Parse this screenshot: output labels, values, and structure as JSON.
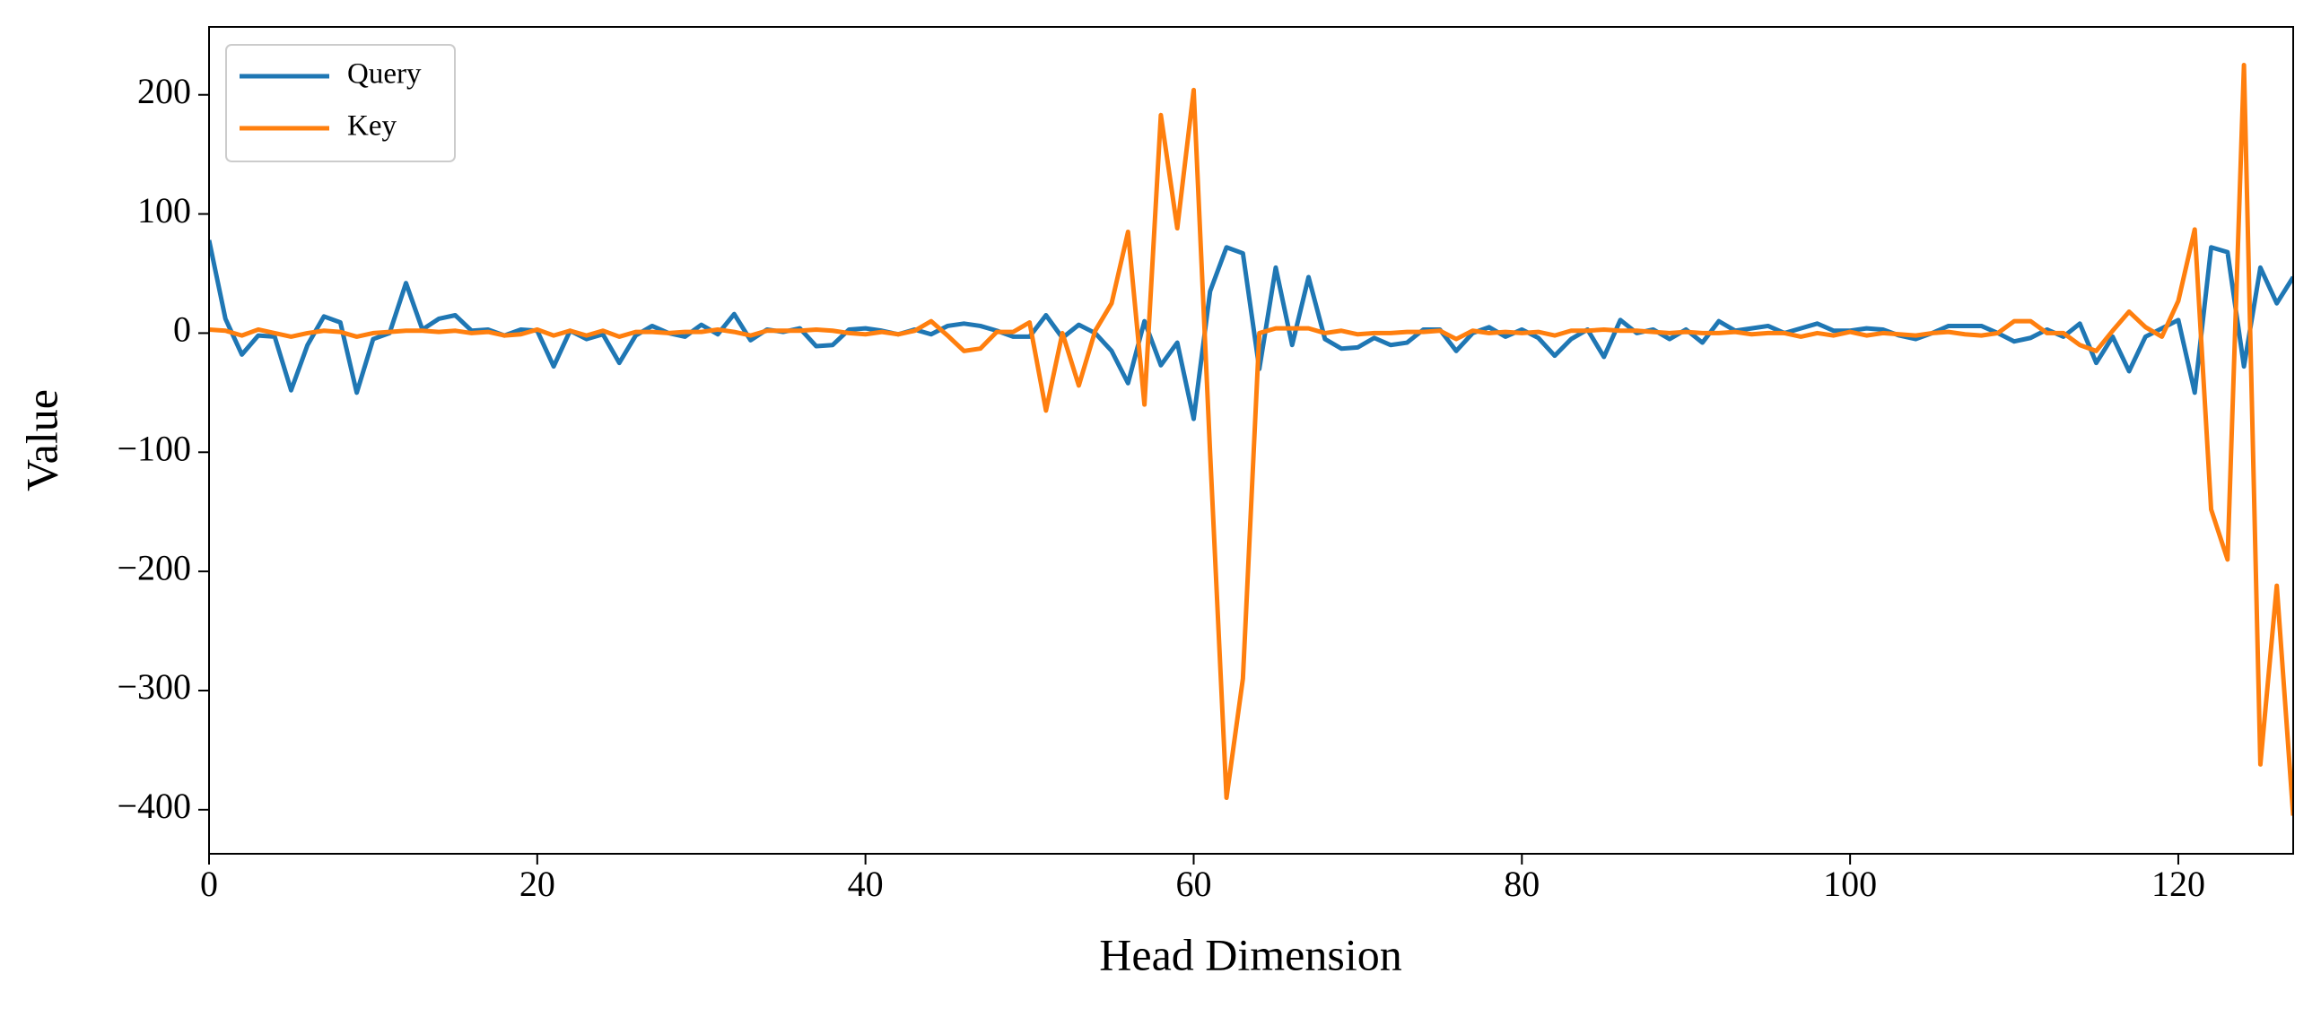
{
  "chart_data": {
    "type": "line",
    "xlabel": "Head Dimension",
    "ylabel": "Value",
    "x": [
      0,
      1,
      2,
      3,
      4,
      5,
      6,
      7,
      8,
      9,
      10,
      11,
      12,
      13,
      14,
      15,
      16,
      17,
      18,
      19,
      20,
      21,
      22,
      23,
      24,
      25,
      26,
      27,
      28,
      29,
      30,
      31,
      32,
      33,
      34,
      35,
      36,
      37,
      38,
      39,
      40,
      41,
      42,
      43,
      44,
      45,
      46,
      47,
      48,
      49,
      50,
      51,
      52,
      53,
      54,
      55,
      56,
      57,
      58,
      59,
      60,
      61,
      62,
      63,
      64,
      65,
      66,
      67,
      68,
      69,
      70,
      71,
      72,
      73,
      74,
      75,
      76,
      77,
      78,
      79,
      80,
      81,
      82,
      83,
      84,
      85,
      86,
      87,
      88,
      89,
      90,
      91,
      92,
      93,
      94,
      95,
      96,
      97,
      98,
      99,
      100,
      101,
      102,
      103,
      104,
      105,
      106,
      107,
      108,
      109,
      110,
      111,
      112,
      113,
      114,
      115,
      116,
      117,
      118,
      119,
      120,
      121,
      122,
      123,
      124,
      125,
      126,
      127
    ],
    "series": [
      {
        "name": "Query",
        "color": "#1f77b4",
        "values": [
          78,
          12,
          -18,
          -2,
          -3,
          -48,
          -10,
          14,
          9,
          -50,
          -5,
          0,
          42,
          3,
          12,
          15,
          2,
          3,
          -2,
          3,
          2,
          -28,
          2,
          -5,
          -1,
          -25,
          -2,
          6,
          0,
          -3,
          7,
          -1,
          16,
          -6,
          3,
          1,
          4,
          -11,
          -10,
          3,
          4,
          2,
          -1,
          3,
          -1,
          6,
          8,
          6,
          2,
          -3,
          -3,
          15,
          -4,
          7,
          0,
          -15,
          -42,
          10,
          -27,
          -8,
          -72,
          35,
          72,
          67,
          -30,
          55,
          -10,
          47,
          -5,
          -13,
          -12,
          -4,
          -10,
          -8,
          3,
          3,
          -15,
          0,
          5,
          -3,
          3,
          -4,
          -19,
          -5,
          3,
          -20,
          11,
          0,
          3,
          -5,
          3,
          -8,
          10,
          2,
          4,
          6,
          0,
          4,
          8,
          2,
          2,
          4,
          3,
          -2,
          -5,
          0,
          6,
          6,
          6,
          0,
          -7,
          -4,
          3,
          -3,
          8,
          -25,
          -3,
          -32,
          -3,
          4,
          11,
          -50,
          72,
          68,
          -28,
          55,
          25,
          47
        ]
      },
      {
        "name": "Key",
        "color": "#ff7f0e",
        "values": [
          3,
          2,
          -2,
          3,
          0,
          -3,
          0,
          2,
          1,
          -3,
          0,
          1,
          2,
          2,
          1,
          2,
          0,
          1,
          -2,
          -1,
          3,
          -2,
          2,
          -2,
          2,
          -3,
          1,
          1,
          0,
          1,
          1,
          3,
          1,
          -2,
          2,
          2,
          2,
          3,
          2,
          0,
          -1,
          1,
          -1,
          2,
          10,
          -2,
          -15,
          -13,
          1,
          1,
          9,
          -65,
          0,
          -44,
          2,
          25,
          85,
          -60,
          183,
          88,
          204,
          -100,
          -390,
          -290,
          0,
          4,
          4,
          4,
          0,
          2,
          -1,
          0,
          0,
          1,
          1,
          2,
          -5,
          2,
          0,
          1,
          0,
          1,
          -2,
          2,
          2,
          3,
          2,
          2,
          1,
          0,
          1,
          0,
          0,
          1,
          -1,
          0,
          0,
          -3,
          0,
          -2,
          1,
          -2,
          0,
          -1,
          -2,
          0,
          1,
          -1,
          -2,
          0,
          10,
          10,
          0,
          0,
          -10,
          -15,
          2,
          18,
          5,
          -3,
          27,
          87,
          -148,
          -190,
          225,
          -362,
          -212,
          -405
        ]
      }
    ],
    "xlim": [
      0,
      127
    ],
    "ylim": [
      -437,
      257
    ],
    "xticks": [
      0,
      20,
      40,
      60,
      80,
      100,
      120
    ],
    "yticks": [
      {
        "value": -400,
        "label": "−400"
      },
      {
        "value": -300,
        "label": "−300"
      },
      {
        "value": -200,
        "label": "−200"
      },
      {
        "value": -100,
        "label": "−100"
      },
      0,
      100,
      200
    ],
    "grid": false,
    "legend": "upper left"
  }
}
